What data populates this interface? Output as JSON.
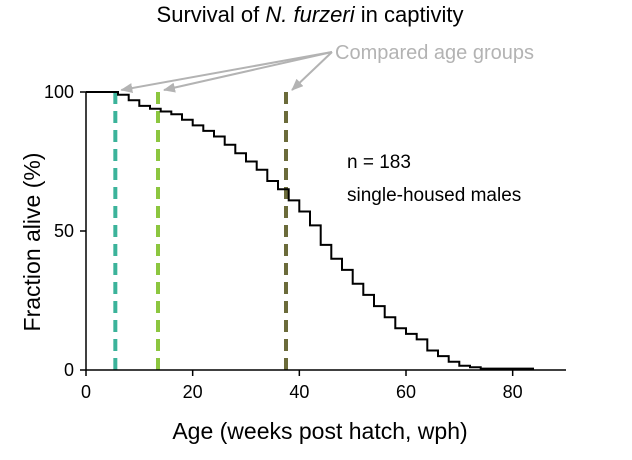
{
  "chart_data": {
    "type": "line",
    "title": {
      "prefix": "Survival of ",
      "species": "N. furzeri",
      "suffix": " in captivity"
    },
    "xlabel": "Age (weeks post hatch, wph)",
    "ylabel": "Fraction alive (%)",
    "xlim": [
      0,
      90
    ],
    "ylim": [
      0,
      100
    ],
    "x_ticks": [
      0,
      20,
      40,
      60,
      80
    ],
    "y_ticks": [
      0,
      50,
      100
    ],
    "series": [
      {
        "name": "survival",
        "color": "#000000",
        "x": [
          0,
          5,
          6,
          8,
          10,
          12,
          14,
          16,
          18,
          20,
          22,
          24,
          26,
          28,
          30,
          32,
          34,
          36,
          38,
          40,
          42,
          44,
          46,
          48,
          50,
          52,
          54,
          56,
          58,
          60,
          62,
          64,
          66,
          68,
          70,
          72,
          74,
          76,
          78,
          80,
          82,
          84
        ],
        "y": [
          100,
          100,
          99,
          97,
          95,
          94,
          93,
          92,
          90,
          88,
          86,
          84,
          81,
          78,
          75,
          72,
          68,
          65,
          61,
          57,
          52,
          45,
          40,
          36,
          31,
          27,
          23,
          19,
          15,
          13,
          11,
          7,
          5,
          3,
          1.5,
          1,
          0.5,
          0.5,
          0.5,
          0.5,
          0.5,
          0.5
        ]
      }
    ],
    "age_groups": [
      {
        "x": 5.5,
        "color": "#3bb39a"
      },
      {
        "x": 13.5,
        "color": "#8cc63f"
      },
      {
        "x": 37.5,
        "color": "#6b6b3a"
      }
    ],
    "callout": {
      "text": "Compared age groups",
      "color": "#b3b3b3"
    },
    "annotation": {
      "line1": "n = 183",
      "line2": "single-housed males"
    }
  }
}
